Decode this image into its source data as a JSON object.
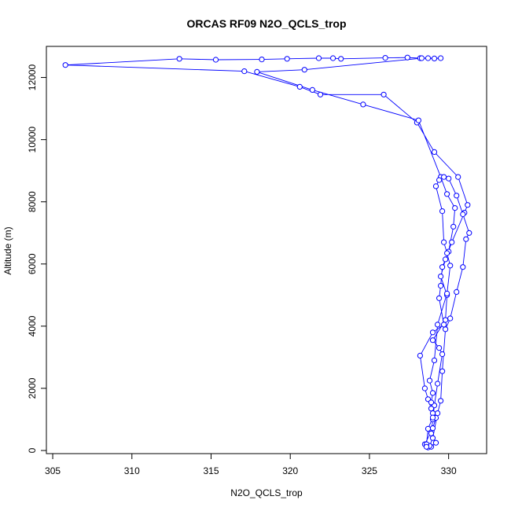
{
  "chart_data": {
    "type": "line",
    "title": "ORCAS RF09 N2O_QCLS_trop",
    "xlabel": "N2O_QCLS_trop",
    "ylabel": "Altitude (m)",
    "xlim": [
      304.6,
      332.4
    ],
    "ylim": [
      -100,
      13000
    ],
    "xticks": [
      "305",
      "310",
      "315",
      "320",
      "325",
      "330"
    ],
    "yticks": [
      "0",
      "2000",
      "4000",
      "6000",
      "8000",
      "10000",
      "12000"
    ],
    "grid": false,
    "series": [
      {
        "color": "#0000ff",
        "marker": "open-circle",
        "points": [
          [
            328.7,
            100
          ],
          [
            328.9,
            120
          ],
          [
            329.2,
            250
          ],
          [
            328.9,
            550
          ],
          [
            329.0,
            1000
          ],
          [
            329.1,
            1450
          ],
          [
            329.3,
            2150
          ],
          [
            329.6,
            3100
          ],
          [
            329.4,
            3300
          ],
          [
            329.0,
            3550
          ],
          [
            329.8,
            4200
          ],
          [
            329.9,
            5000
          ],
          [
            329.5,
            5600
          ],
          [
            329.8,
            6150
          ],
          [
            330.2,
            6700
          ],
          [
            331.0,
            7650
          ],
          [
            331.2,
            7900
          ],
          [
            330.6,
            8800
          ],
          [
            329.1,
            9600
          ],
          [
            328.0,
            10550
          ],
          [
            325.9,
            11450
          ],
          [
            321.9,
            11450
          ],
          [
            320.6,
            11700
          ],
          [
            317.1,
            12200
          ],
          [
            305.8,
            12400
          ],
          [
            313.0,
            12600
          ],
          [
            315.3,
            12570
          ],
          [
            318.2,
            12580
          ],
          [
            319.8,
            12600
          ],
          [
            321.8,
            12620
          ],
          [
            322.7,
            12620
          ],
          [
            323.2,
            12600
          ],
          [
            326.0,
            12630
          ],
          [
            327.4,
            12640
          ],
          [
            328.2,
            12620
          ],
          [
            328.7,
            12620
          ],
          [
            329.1,
            12610
          ],
          [
            329.5,
            12620
          ],
          [
            328.3,
            12620
          ],
          [
            320.9,
            12250
          ],
          [
            317.9,
            12180
          ],
          [
            321.4,
            11600
          ],
          [
            324.6,
            11130
          ],
          [
            328.1,
            10620
          ],
          [
            329.5,
            8800
          ],
          [
            329.9,
            8250
          ],
          [
            330.4,
            7800
          ],
          [
            330.3,
            7200
          ],
          [
            330.0,
            6400
          ],
          [
            329.6,
            5900
          ],
          [
            329.5,
            5300
          ],
          [
            329.4,
            4900
          ],
          [
            329.7,
            4050
          ],
          [
            329.0,
            3800
          ],
          [
            328.2,
            3050
          ],
          [
            328.5,
            2000
          ],
          [
            328.7,
            1650
          ],
          [
            328.9,
            1350
          ],
          [
            329.0,
            1200
          ],
          [
            329.2,
            1050
          ],
          [
            329.0,
            720
          ],
          [
            328.5,
            200
          ],
          [
            328.8,
            150
          ],
          [
            329.0,
            400
          ],
          [
            329.3,
            1200
          ],
          [
            329.5,
            1600
          ],
          [
            329.6,
            2550
          ],
          [
            329.8,
            3900
          ],
          [
            330.1,
            4250
          ],
          [
            330.5,
            5100
          ],
          [
            330.9,
            5900
          ],
          [
            331.1,
            6800
          ],
          [
            331.3,
            7000
          ],
          [
            330.9,
            7600
          ],
          [
            330.5,
            8200
          ],
          [
            330.0,
            8750
          ],
          [
            329.7,
            8800
          ],
          [
            329.4,
            8700
          ],
          [
            329.2,
            8500
          ],
          [
            329.6,
            7700
          ],
          [
            329.7,
            6700
          ],
          [
            329.9,
            6350
          ],
          [
            330.1,
            5950
          ],
          [
            329.9,
            5050
          ],
          [
            329.3,
            4050
          ],
          [
            329.1,
            2900
          ],
          [
            328.8,
            2250
          ],
          [
            329.0,
            1850
          ],
          [
            328.9,
            1550
          ],
          [
            329.0,
            1060
          ],
          [
            328.7,
            700
          ],
          [
            328.6,
            200
          ],
          [
            328.6,
            120
          ]
        ]
      }
    ]
  }
}
